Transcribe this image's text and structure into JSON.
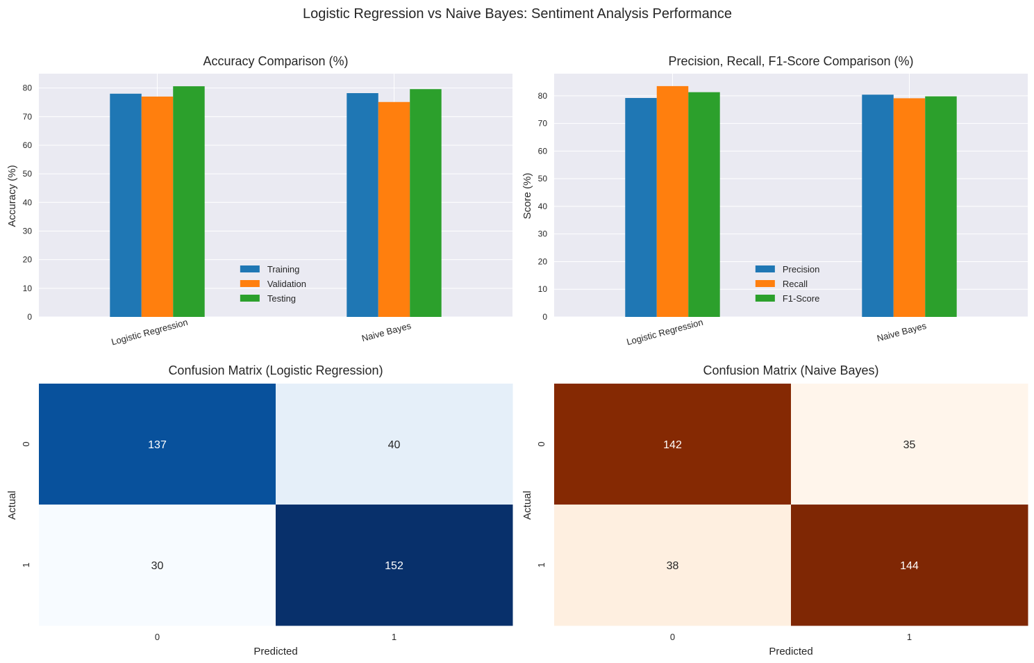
{
  "figure_title": "Logistic Regression vs Naive Bayes: Sentiment Analysis Performance",
  "chart_data": [
    {
      "type": "bar",
      "title": "Accuracy Comparison (%)",
      "xlabel": "",
      "ylabel": "Accuracy (%)",
      "categories": [
        "Logistic Regression",
        "Naive Bayes"
      ],
      "series": [
        {
          "name": "Training",
          "values": [
            78.0,
            78.2
          ],
          "color": "#1f77b4"
        },
        {
          "name": "Validation",
          "values": [
            77.0,
            75.1
          ],
          "color": "#ff7f0e"
        },
        {
          "name": "Testing",
          "values": [
            80.6,
            79.6
          ],
          "color": "#2ca02c"
        }
      ],
      "ylim": [
        0,
        85
      ],
      "yticks": [
        0,
        10,
        20,
        30,
        40,
        50,
        60,
        70,
        80
      ],
      "legend_loc": "lower center",
      "grid": true
    },
    {
      "type": "bar",
      "title": "Precision, Recall, F1-Score Comparison (%)",
      "xlabel": "",
      "ylabel": "Score (%)",
      "categories": [
        "Logistic Regression",
        "Naive Bayes"
      ],
      "series": [
        {
          "name": "Precision",
          "values": [
            79.2,
            80.4
          ],
          "color": "#1f77b4"
        },
        {
          "name": "Recall",
          "values": [
            83.5,
            79.1
          ],
          "color": "#ff7f0e"
        },
        {
          "name": "F1-Score",
          "values": [
            81.3,
            79.8
          ],
          "color": "#2ca02c"
        }
      ],
      "ylim": [
        0,
        88
      ],
      "yticks": [
        0,
        10,
        20,
        30,
        40,
        50,
        60,
        70,
        80
      ],
      "legend_loc": "lower center",
      "grid": true
    },
    {
      "type": "heatmap",
      "title": "Confusion Matrix (Logistic Regression)",
      "xlabel": "Predicted",
      "ylabel": "Actual",
      "x_labels": [
        "0",
        "1"
      ],
      "y_labels": [
        "0",
        "1"
      ],
      "values": [
        [
          137,
          40
        ],
        [
          30,
          152
        ]
      ],
      "colormap": "Blues",
      "colors": [
        [
          "#08519c",
          "#e5eff9"
        ],
        [
          "#f7fbff",
          "#08306b"
        ]
      ]
    },
    {
      "type": "heatmap",
      "title": "Confusion Matrix (Naive Bayes)",
      "xlabel": "Predicted",
      "ylabel": "Actual",
      "x_labels": [
        "0",
        "1"
      ],
      "y_labels": [
        "0",
        "1"
      ],
      "values": [
        [
          142,
          35
        ],
        [
          38,
          144
        ]
      ],
      "colormap": "Oranges",
      "colors": [
        [
          "#852903",
          "#fff5eb"
        ],
        [
          "#feefe0",
          "#7f2704"
        ]
      ]
    }
  ]
}
